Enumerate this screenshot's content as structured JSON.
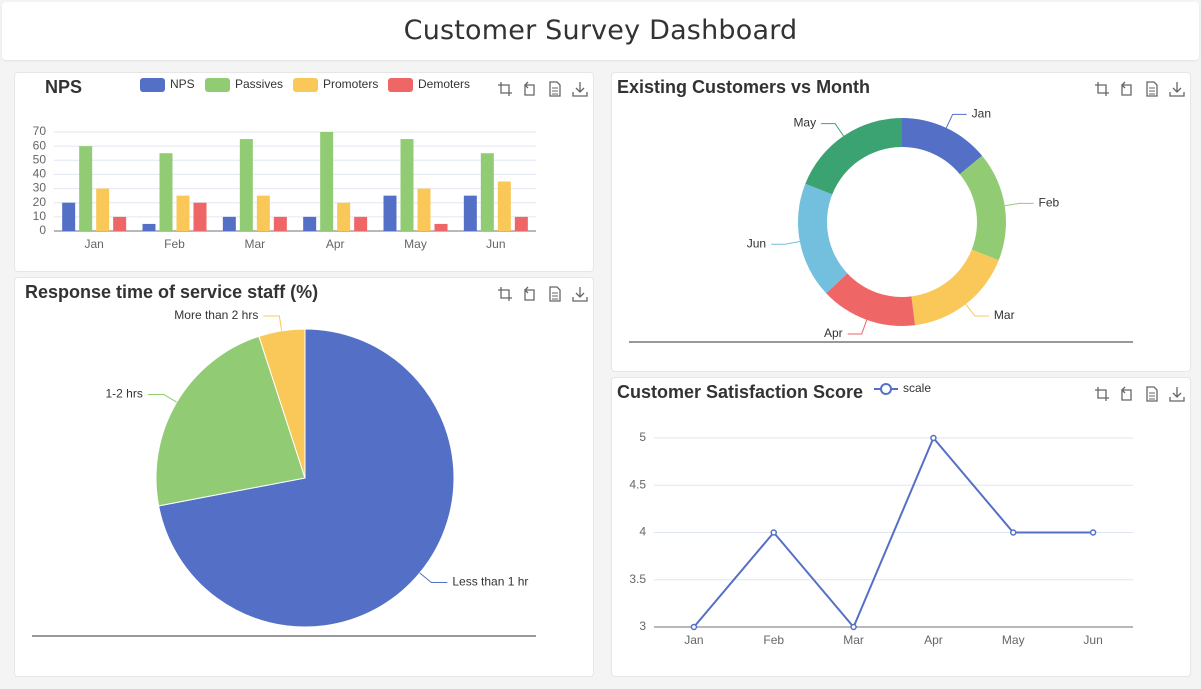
{
  "page": {
    "title": "Customer Survey Dashboard"
  },
  "colors": {
    "blue": "#5470c6",
    "green": "#91cc75",
    "yellow": "#fac858",
    "red": "#ee6666",
    "cyan": "#73c0de",
    "teal": "#3ba272"
  },
  "toolbox": [
    "zoom-icon",
    "restore-icon",
    "data-view-icon",
    "download-icon"
  ],
  "chart_data": [
    {
      "id": "nps",
      "type": "bar",
      "title": "NPS",
      "categories": [
        "Jan",
        "Feb",
        "Mar",
        "Apr",
        "May",
        "Jun"
      ],
      "series": [
        {
          "name": "NPS",
          "values": [
            20,
            5,
            10,
            10,
            25,
            25
          ]
        },
        {
          "name": "Passives",
          "values": [
            60,
            55,
            65,
            70,
            65,
            55
          ]
        },
        {
          "name": "Promoters",
          "values": [
            30,
            25,
            25,
            20,
            30,
            35
          ]
        },
        {
          "name": "Demoters",
          "values": [
            10,
            20,
            10,
            10,
            5,
            10
          ]
        }
      ],
      "ylim": [
        0,
        70
      ],
      "yticks": [
        0,
        10,
        20,
        30,
        40,
        50,
        60,
        70
      ],
      "legend": "top",
      "grid": true
    },
    {
      "id": "existing",
      "type": "pie",
      "title": "Existing Customers vs Month",
      "labels": [
        "Jan",
        "Feb",
        "Mar",
        "Apr",
        "Jun",
        "May"
      ],
      "values": [
        14,
        17,
        17,
        15,
        18,
        19
      ],
      "donut": true
    },
    {
      "id": "response",
      "type": "pie",
      "title": "Response time of service staff  (%)",
      "labels": [
        "Less than 1 hr",
        "1-2 hrs",
        "More than 2 hrs"
      ],
      "values": [
        72,
        23,
        5
      ]
    },
    {
      "id": "csat",
      "type": "line",
      "title": "Customer Satisfaction Score",
      "categories": [
        "Jan",
        "Feb",
        "Mar",
        "Apr",
        "May",
        "Jun"
      ],
      "series": [
        {
          "name": "scale",
          "values": [
            3,
            4,
            3,
            5,
            4,
            4
          ]
        }
      ],
      "ylim": [
        3,
        5
      ],
      "yticks": [
        "3",
        "3.5",
        "4",
        "4.5",
        "5"
      ],
      "legend": "top",
      "grid": true
    }
  ]
}
